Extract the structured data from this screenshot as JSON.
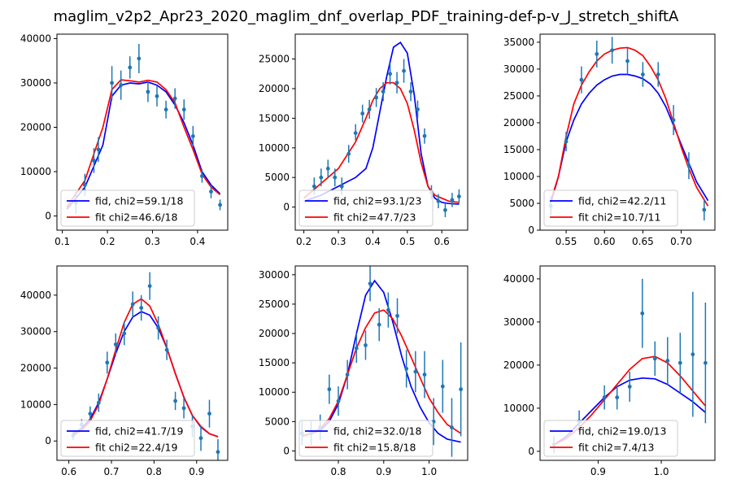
{
  "figure": {
    "suptitle": "maglim_v2p2_Apr23_2020_maglim_dnf_overlap_PDF_training-def-p-v_J_stretch_shiftA"
  },
  "colors": {
    "fid": "#0000ff",
    "fit": "#ff0000",
    "data": "#1f77b4"
  },
  "chart_data": [
    {
      "type": "line",
      "xlim": [
        0.088,
        0.467
      ],
      "ylim": [
        -3200,
        41000
      ],
      "xticks": [
        0.1,
        0.2,
        0.3,
        0.4
      ],
      "xtick_labels": [
        "0.1",
        "0.2",
        "0.3",
        "0.4"
      ],
      "yticks": [
        0,
        10000,
        20000,
        30000,
        40000
      ],
      "ytick_labels": [
        "0",
        "10000",
        "20000",
        "30000",
        "40000"
      ],
      "legend": {
        "position": "lower-left",
        "entries": [
          "fid, chi2=59.1/18",
          "fit chi2=46.6/18"
        ]
      },
      "series": [
        {
          "name": "fid, chi2=59.1/18",
          "color": "#0000ff",
          "x": [
            0.11,
            0.15,
            0.19,
            0.21,
            0.23,
            0.25,
            0.27,
            0.29,
            0.31,
            0.33,
            0.35,
            0.37,
            0.39,
            0.41,
            0.43,
            0.45
          ],
          "y": [
            1500,
            6500,
            16000,
            27000,
            29500,
            30000,
            29800,
            30200,
            29500,
            28000,
            25000,
            21000,
            16000,
            10000,
            7000,
            5000
          ]
        },
        {
          "name": "fit chi2=46.6/18",
          "color": "#ff0000",
          "x": [
            0.11,
            0.15,
            0.19,
            0.21,
            0.23,
            0.25,
            0.27,
            0.29,
            0.31,
            0.33,
            0.35,
            0.37,
            0.39,
            0.41,
            0.43,
            0.45
          ],
          "y": [
            2000,
            8000,
            20000,
            28500,
            30700,
            30500,
            30200,
            30600,
            30200,
            28500,
            25500,
            20000,
            15000,
            9500,
            6500,
            4800
          ]
        }
      ],
      "points": {
        "x": [
          0.13,
          0.15,
          0.17,
          0.18,
          0.21,
          0.23,
          0.25,
          0.27,
          0.29,
          0.31,
          0.33,
          0.35,
          0.37,
          0.39,
          0.41,
          0.43,
          0.45
        ],
        "y": [
          3000,
          7000,
          12500,
          15000,
          30000,
          29500,
          33500,
          35500,
          28000,
          27000,
          24000,
          26500,
          24000,
          18000,
          9000,
          5500,
          2500
        ],
        "err": [
          2500,
          2500,
          2800,
          2800,
          3800,
          3300,
          2500,
          3300,
          2300,
          2300,
          2000,
          2300,
          2300,
          2300,
          1500,
          1500,
          1200
        ]
      }
    },
    {
      "type": "line",
      "xlim": [
        0.175,
        0.675
      ],
      "ylim": [
        -3900,
        29200
      ],
      "xticks": [
        0.2,
        0.3,
        0.4,
        0.5,
        0.6
      ],
      "xtick_labels": [
        "0.2",
        "0.3",
        "0.4",
        "0.5",
        "0.6"
      ],
      "yticks": [
        0,
        5000,
        10000,
        15000,
        20000,
        25000
      ],
      "ytick_labels": [
        "0",
        "5000",
        "10000",
        "15000",
        "20000",
        "25000"
      ],
      "legend": {
        "position": "lower-left",
        "entries": [
          "fid, chi2=93.1/23",
          "fit chi2=47.7/23"
        ]
      },
      "series": [
        {
          "name": "fid, chi2=93.1/23",
          "color": "#0000ff",
          "x": [
            0.2,
            0.25,
            0.3,
            0.35,
            0.38,
            0.4,
            0.42,
            0.44,
            0.46,
            0.48,
            0.5,
            0.52,
            0.54,
            0.56,
            0.58,
            0.6,
            0.62,
            0.65
          ],
          "y": [
            1000,
            2000,
            3500,
            5000,
            6500,
            10000,
            16000,
            22000,
            27000,
            27800,
            26000,
            19000,
            9000,
            3500,
            1500,
            800,
            600,
            500
          ]
        },
        {
          "name": "fit chi2=47.7/23",
          "color": "#ff0000",
          "x": [
            0.2,
            0.25,
            0.3,
            0.35,
            0.38,
            0.4,
            0.42,
            0.44,
            0.46,
            0.48,
            0.5,
            0.52,
            0.54,
            0.56,
            0.58,
            0.6,
            0.62,
            0.65
          ],
          "y": [
            1500,
            4000,
            6500,
            11000,
            15000,
            18000,
            20000,
            21000,
            21000,
            20000,
            17500,
            13000,
            7500,
            3500,
            2000,
            1500,
            1000,
            800
          ]
        }
      ],
      "points": {
        "x": [
          0.23,
          0.25,
          0.27,
          0.29,
          0.31,
          0.33,
          0.35,
          0.37,
          0.39,
          0.41,
          0.43,
          0.45,
          0.47,
          0.49,
          0.51,
          0.53,
          0.55,
          0.57,
          0.59,
          0.61,
          0.63,
          0.65
        ],
        "y": [
          3500,
          5000,
          6500,
          5000,
          3500,
          9000,
          12500,
          15800,
          16500,
          18500,
          19500,
          22500,
          21000,
          23000,
          19500,
          16500,
          12000,
          2500,
          1000,
          -500,
          1200,
          1800
        ],
        "err": [
          1500,
          1500,
          1500,
          1500,
          1500,
          1500,
          1500,
          1500,
          1600,
          1600,
          1600,
          1800,
          1800,
          2000,
          1600,
          1500,
          1300,
          1200,
          1200,
          1200,
          1200,
          1200
        ]
      }
    },
    {
      "type": "line",
      "xlim": [
        0.516,
        0.744
      ],
      "ylim": [
        0,
        36500
      ],
      "xticks": [
        0.55,
        0.6,
        0.65,
        0.7
      ],
      "xtick_labels": [
        "0.55",
        "0.60",
        "0.65",
        "0.70"
      ],
      "yticks": [
        0,
        5000,
        10000,
        15000,
        20000,
        25000,
        30000,
        35000
      ],
      "ytick_labels": [
        "0",
        "5000",
        "10000",
        "15000",
        "20000",
        "25000",
        "30000",
        "35000"
      ],
      "legend": {
        "position": "lower-left",
        "entries": [
          "fid, chi2=42.2/11",
          "fit chi2=10.7/11"
        ]
      },
      "series": [
        {
          "name": "fid, chi2=42.2/11",
          "color": "#0000ff",
          "x": [
            0.53,
            0.54,
            0.55,
            0.56,
            0.57,
            0.58,
            0.59,
            0.6,
            0.61,
            0.62,
            0.63,
            0.64,
            0.65,
            0.66,
            0.67,
            0.68,
            0.69,
            0.7,
            0.71,
            0.72,
            0.735
          ],
          "y": [
            5000,
            10000,
            16500,
            20500,
            23500,
            25500,
            27000,
            28000,
            28700,
            29000,
            29000,
            28700,
            28200,
            27200,
            25500,
            23000,
            19500,
            16000,
            12500,
            9000,
            5500
          ]
        },
        {
          "name": "fit chi2=10.7/11",
          "color": "#ff0000",
          "x": [
            0.53,
            0.54,
            0.55,
            0.56,
            0.57,
            0.58,
            0.59,
            0.6,
            0.61,
            0.62,
            0.63,
            0.64,
            0.65,
            0.66,
            0.67,
            0.68,
            0.69,
            0.7,
            0.71,
            0.72,
            0.735
          ],
          "y": [
            5500,
            10000,
            17500,
            23500,
            27000,
            29500,
            31500,
            32800,
            33500,
            33900,
            34000,
            33500,
            32500,
            30500,
            28000,
            24500,
            20000,
            15500,
            11500,
            8000,
            4500
          ]
        }
      ],
      "points": {
        "x": [
          0.53,
          0.55,
          0.57,
          0.59,
          0.61,
          0.63,
          0.65,
          0.67,
          0.69,
          0.71,
          0.73
        ],
        "y": [
          4500,
          16500,
          28000,
          32800,
          33500,
          31500,
          29000,
          29000,
          20500,
          12000,
          3800
        ],
        "err": [
          1800,
          1800,
          2500,
          2500,
          2500,
          2500,
          2300,
          2300,
          2800,
          2500,
          2000
        ]
      }
    },
    {
      "type": "line",
      "xlim": [
        0.572,
        0.973
      ],
      "ylim": [
        -5300,
        48000
      ],
      "xticks": [
        0.6,
        0.7,
        0.8,
        0.9
      ],
      "xtick_labels": [
        "0.6",
        "0.7",
        "0.8",
        "0.9"
      ],
      "yticks": [
        0,
        10000,
        20000,
        30000,
        40000
      ],
      "ytick_labels": [
        "0",
        "10000",
        "20000",
        "30000",
        "40000"
      ],
      "legend": {
        "position": "lower-left",
        "entries": [
          "fid, chi2=41.7/19",
          "fit chi2=22.4/19"
        ]
      },
      "series": [
        {
          "name": "fid, chi2=41.7/19",
          "color": "#0000ff",
          "x": [
            0.61,
            0.63,
            0.65,
            0.67,
            0.69,
            0.71,
            0.73,
            0.75,
            0.77,
            0.79,
            0.81,
            0.83,
            0.85,
            0.87,
            0.89,
            0.91,
            0.93,
            0.95
          ],
          "y": [
            2000,
            3500,
            6000,
            10500,
            17000,
            24000,
            30000,
            34000,
            35500,
            34500,
            31000,
            25500,
            18500,
            12000,
            7000,
            3800,
            2000,
            1200
          ]
        },
        {
          "name": "fit chi2=22.4/19",
          "color": "#ff0000",
          "x": [
            0.61,
            0.63,
            0.65,
            0.67,
            0.69,
            0.71,
            0.73,
            0.75,
            0.77,
            0.79,
            0.81,
            0.83,
            0.85,
            0.87,
            0.89,
            0.91,
            0.93,
            0.95
          ],
          "y": [
            1500,
            3000,
            5500,
            10000,
            17000,
            25000,
            32500,
            37500,
            39000,
            37000,
            32000,
            25500,
            18500,
            12000,
            7000,
            4000,
            2000,
            1200
          ]
        }
      ],
      "points": {
        "x": [
          0.61,
          0.63,
          0.65,
          0.67,
          0.69,
          0.71,
          0.73,
          0.75,
          0.77,
          0.79,
          0.81,
          0.83,
          0.85,
          0.87,
          0.89,
          0.91,
          0.93,
          0.95
        ],
        "y": [
          1500,
          4500,
          7500,
          10500,
          21500,
          26500,
          29500,
          37500,
          36500,
          42500,
          31000,
          25000,
          11000,
          9000,
          4000,
          800,
          7500,
          -3000
        ],
        "err": [
          1200,
          1500,
          2000,
          2500,
          3000,
          3000,
          3200,
          3500,
          3500,
          3800,
          3200,
          2800,
          2500,
          2800,
          3000,
          3500,
          3800,
          3500
        ]
      }
    },
    {
      "type": "line",
      "xlim": [
        0.705,
        1.085
      ],
      "ylim": [
        -1600,
        31500
      ],
      "xticks": [
        0.8,
        0.9,
        1.0
      ],
      "xtick_labels": [
        "0.8",
        "0.9",
        "1.0"
      ],
      "yticks": [
        0,
        5000,
        10000,
        15000,
        20000,
        25000,
        30000
      ],
      "ytick_labels": [
        "0",
        "5000",
        "10000",
        "15000",
        "20000",
        "25000",
        "30000"
      ],
      "legend": {
        "position": "lower-left",
        "entries": [
          "fid, chi2=32.0/18",
          "fit chi2=15.8/18"
        ]
      },
      "series": [
        {
          "name": "fid, chi2=32.0/18",
          "color": "#0000ff",
          "x": [
            0.72,
            0.74,
            0.76,
            0.78,
            0.8,
            0.82,
            0.84,
            0.86,
            0.88,
            0.9,
            0.92,
            0.94,
            0.96,
            0.98,
            1.0,
            1.02,
            1.04,
            1.07
          ],
          "y": [
            2500,
            3000,
            3500,
            5000,
            8000,
            13000,
            20000,
            26500,
            29000,
            27000,
            22000,
            16000,
            11000,
            7500,
            4800,
            3000,
            2000,
            1500
          ]
        },
        {
          "name": "fit chi2=15.8/18",
          "color": "#ff0000",
          "x": [
            0.72,
            0.74,
            0.76,
            0.78,
            0.8,
            0.82,
            0.84,
            0.86,
            0.88,
            0.9,
            0.92,
            0.94,
            0.96,
            0.98,
            1.0,
            1.02,
            1.04,
            1.07
          ],
          "y": [
            2500,
            3000,
            3800,
            5500,
            8500,
            13000,
            17500,
            21000,
            23500,
            24000,
            22500,
            19500,
            16000,
            12500,
            9000,
            6500,
            4500,
            3000
          ]
        }
      ],
      "points": {
        "x": [
          0.72,
          0.74,
          0.76,
          0.78,
          0.8,
          0.82,
          0.84,
          0.86,
          0.87,
          0.89,
          0.91,
          0.93,
          0.95,
          0.97,
          0.99,
          1.01,
          1.03,
          1.05,
          1.07
        ],
        "y": [
          3000,
          3000,
          4000,
          10500,
          8500,
          13000,
          17500,
          18000,
          28500,
          21500,
          24000,
          23000,
          14000,
          13500,
          13000,
          5000,
          11000,
          4000,
          10500
        ],
        "err": [
          2000,
          2000,
          2200,
          2500,
          2500,
          2500,
          2500,
          2500,
          3000,
          2800,
          3000,
          3000,
          3200,
          3500,
          4000,
          4000,
          4500,
          5000,
          8000
        ]
      }
    },
    {
      "type": "line",
      "xlim": [
        0.808,
        1.085
      ],
      "ylim": [
        -2100,
        43000
      ],
      "xticks": [
        0.9,
        1.0
      ],
      "xtick_labels": [
        "0.9",
        "1.0"
      ],
      "yticks": [
        0,
        10000,
        20000,
        30000,
        40000
      ],
      "ytick_labels": [
        "0",
        "10000",
        "20000",
        "30000",
        "40000"
      ],
      "legend": {
        "position": "lower-left",
        "entries": [
          "fid, chi2=19.0/13",
          "fit chi2=7.4/13"
        ]
      },
      "series": [
        {
          "name": "fid, chi2=19.0/13",
          "color": "#0000ff",
          "x": [
            0.83,
            0.85,
            0.87,
            0.89,
            0.91,
            0.93,
            0.95,
            0.97,
            0.99,
            1.01,
            1.03,
            1.05,
            1.07
          ],
          "y": [
            1500,
            3500,
            6500,
            9500,
            12500,
            15000,
            16500,
            17000,
            16800,
            15500,
            13500,
            11500,
            9000
          ]
        },
        {
          "name": "fit chi2=7.4/13",
          "color": "#ff0000",
          "x": [
            0.83,
            0.85,
            0.87,
            0.89,
            0.91,
            0.93,
            0.95,
            0.97,
            0.99,
            1.01,
            1.03,
            1.05,
            1.07
          ],
          "y": [
            1500,
            3000,
            5500,
            8500,
            12000,
            15500,
            19000,
            21500,
            22000,
            20500,
            17500,
            14000,
            10500
          ]
        }
      ],
      "points": {
        "x": [
          0.83,
          0.87,
          0.91,
          0.93,
          0.95,
          0.97,
          0.99,
          1.01,
          1.03,
          1.05,
          1.07
        ],
        "y": [
          1500,
          7000,
          12500,
          12500,
          15000,
          32000,
          21500,
          21000,
          20500,
          22500,
          20500
        ],
        "err": [
          2000,
          2500,
          2800,
          2800,
          3500,
          8000,
          4000,
          5500,
          7000,
          14500,
          14000
        ]
      }
    }
  ]
}
